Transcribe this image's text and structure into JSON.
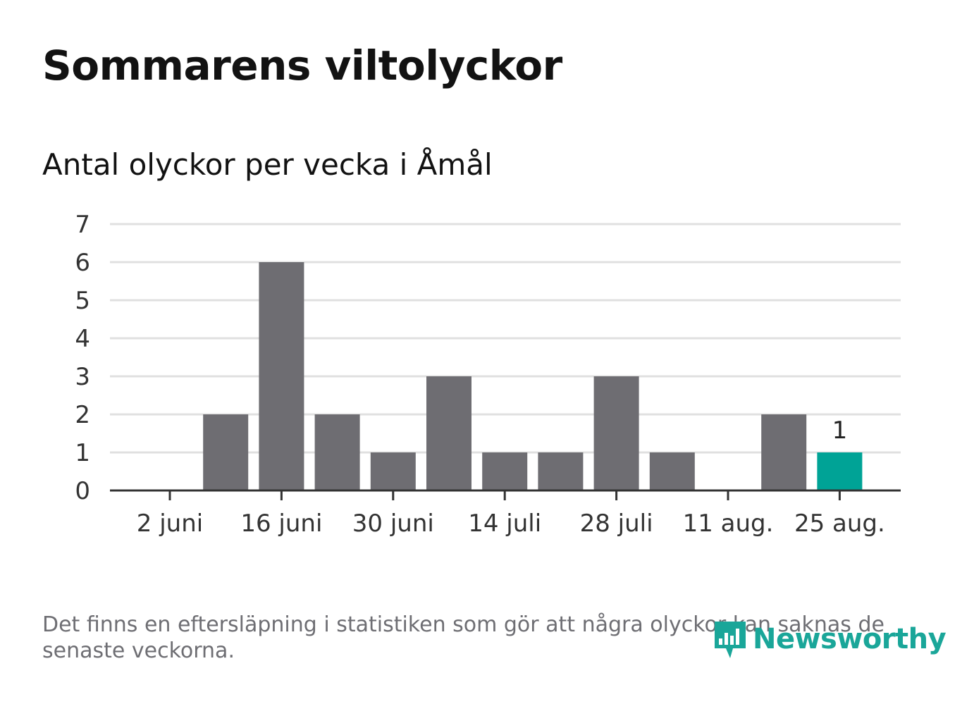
{
  "header": {
    "title": "Sommarens viltolyckor",
    "subtitle": "Antal olyckor per vecka i Åmål"
  },
  "footnote": "Det finns en eftersläpning i statistiken som gör att några olyckor kan saknas de senaste veckorna.",
  "logo": {
    "text": "Newsworthy"
  },
  "colors": {
    "bar": "#6e6d72",
    "highlight": "#00a396",
    "grid": "#e0e0e0",
    "axis": "#333333",
    "text": "#333333",
    "logo": "#1aa699"
  },
  "chart_data": {
    "type": "bar",
    "categories": [
      "2 juni",
      "9 juni",
      "16 juni",
      "23 juni",
      "30 juni",
      "7 juli",
      "14 juli",
      "21 juli",
      "28 juli",
      "4 aug.",
      "11 aug.",
      "18 aug.",
      "25 aug."
    ],
    "x_tick_labels": [
      "2 juni",
      "16 juni",
      "30 juni",
      "14 juli",
      "28 juli",
      "11 aug.",
      "25 aug."
    ],
    "values": [
      0,
      2,
      6,
      2,
      1,
      3,
      1,
      1,
      3,
      1,
      0,
      2,
      1
    ],
    "highlight_index": 12,
    "data_labels": [
      {
        "index": 12,
        "text": "1"
      }
    ],
    "yticks": [
      0,
      1,
      2,
      3,
      4,
      5,
      6,
      7
    ],
    "ylim": [
      0,
      7
    ],
    "grid": true
  }
}
